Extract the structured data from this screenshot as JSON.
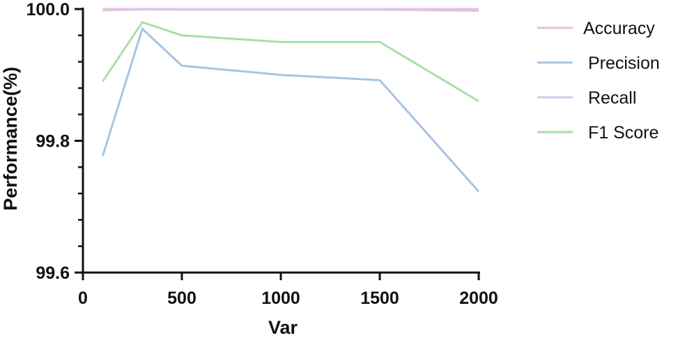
{
  "chart_data": {
    "type": "line",
    "xlabel": "Var",
    "ylabel": "Performance(%)",
    "xlim": [
      0,
      2000
    ],
    "ylim": [
      99.6,
      100.0
    ],
    "x_ticks": [
      0,
      500,
      1000,
      1500,
      2000
    ],
    "y_ticks": [
      "99.6",
      "99.8",
      "100.0"
    ],
    "y_minor_ticks": 4,
    "grid": false,
    "legend": "right",
    "x": [
      100,
      300,
      500,
      1000,
      1500,
      2000
    ],
    "series": [
      {
        "name": "Accuracy",
        "color": "#e8c3c3",
        "values": [
          99.998,
          99.9995,
          99.999,
          99.999,
          99.999,
          99.9975
        ]
      },
      {
        "name": " Precision",
        "color": "#a8c3e3",
        "values": [
          99.777,
          99.97,
          99.914,
          99.9,
          99.892,
          99.723
        ]
      },
      {
        "name": " Recall",
        "color": "#d9c5e8",
        "values": [
          100.0,
          100.0,
          100.0,
          100.0,
          100.0,
          100.0
        ]
      },
      {
        "name": " F1 Score",
        "color": "#a9dfa6",
        "values": [
          99.89,
          99.98,
          99.96,
          99.95,
          99.95,
          99.86
        ]
      }
    ]
  }
}
